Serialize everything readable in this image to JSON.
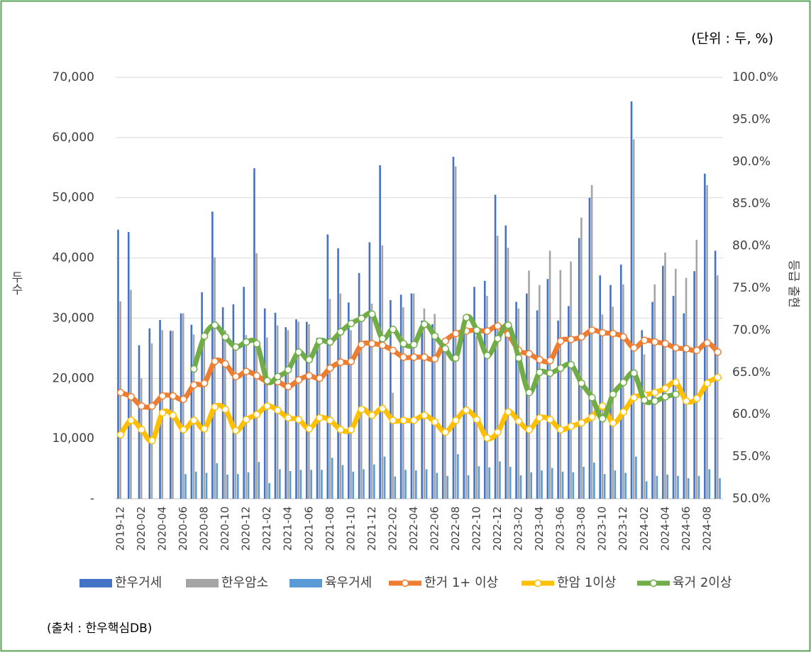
{
  "chart_data": {
    "type": "bar_line",
    "unit_note": "(단위 : 두, %)",
    "source": "(출처 : 한우핵심DB)",
    "ylabel": "두수",
    "y2label": "등급 출현",
    "categories": [
      "2019-12",
      null,
      "2020-02",
      null,
      "2020-04",
      null,
      "2020-06",
      null,
      "2020-08",
      null,
      "2020-10",
      null,
      "2020-12",
      null,
      "2021-02",
      null,
      "2021-04",
      null,
      "2021-06",
      null,
      "2021-08",
      null,
      "2021-10",
      null,
      "2021-12",
      null,
      "2022-02",
      null,
      "2022-04",
      null,
      "2022-06",
      null,
      "2022-08",
      null,
      "2022-10",
      null,
      "2022-12",
      null,
      "2023-02",
      null,
      "2023-04",
      null,
      "2023-06",
      null,
      "2023-08",
      null,
      "2023-10",
      null,
      "2023-12",
      null,
      "2024-02",
      null,
      "2024-04",
      null,
      "2024-06",
      null,
      "2024-08",
      null
    ],
    "ylim": [
      0,
      70000
    ],
    "yticks": [
      {
        "value": 0,
        "label": "-"
      },
      {
        "value": 10000,
        "label": "10,000"
      },
      {
        "value": 20000,
        "label": "20,000"
      },
      {
        "value": 30000,
        "label": "30,000"
      },
      {
        "value": 40000,
        "label": "40,000"
      },
      {
        "value": 50000,
        "label": "50,000"
      },
      {
        "value": 60000,
        "label": "60,000"
      },
      {
        "value": 70000,
        "label": "70,000"
      }
    ],
    "y2lim": [
      50,
      100
    ],
    "y2ticks": [
      {
        "value": 50,
        "label": "50.0%"
      },
      {
        "value": 55,
        "label": "55.0%"
      },
      {
        "value": 60,
        "label": "60.0%"
      },
      {
        "value": 65,
        "label": "65.0%"
      },
      {
        "value": 70,
        "label": "70.0%"
      },
      {
        "value": 75,
        "label": "75.0%"
      },
      {
        "value": 80,
        "label": "80.0%"
      },
      {
        "value": 85,
        "label": "85.0%"
      },
      {
        "value": 90,
        "label": "90.0%"
      },
      {
        "value": 95,
        "label": "95.0%"
      },
      {
        "value": 100,
        "label": "100.0%"
      }
    ],
    "grid": true,
    "series": [
      {
        "name": "한우거세",
        "type": "bar",
        "color": "#4472c4",
        "values": [
          44700,
          44300,
          25500,
          28300,
          29700,
          27900,
          30800,
          28900,
          34300,
          47700,
          31800,
          32300,
          35200,
          54900,
          31600,
          30900,
          28500,
          29800,
          29400,
          26700,
          43900,
          41600,
          32600,
          37500,
          42600,
          55400,
          33000,
          33900,
          34100,
          29600,
          29000,
          26000,
          56800,
          28900,
          35200,
          36200,
          50500,
          45400,
          32700,
          34100,
          31300,
          36500,
          29600,
          32000,
          43300,
          50000,
          37100,
          35500,
          38900,
          66000,
          28000,
          32700,
          38700,
          33700,
          30800,
          37800,
          54000,
          41200
        ]
      },
      {
        "name": "한우암소",
        "type": "bar",
        "color": "#a5a5a5",
        "values": [
          32800,
          34700,
          20000,
          25800,
          28000,
          27900,
          30800,
          27300,
          26000,
          40100,
          28000,
          25000,
          27200,
          40800,
          26800,
          28800,
          28000,
          29400,
          29000,
          26500,
          33200,
          34100,
          28000,
          29800,
          32400,
          42100,
          17600,
          31800,
          34100,
          31600,
          30700,
          25000,
          55200,
          27800,
          27000,
          33700,
          43700,
          41700,
          31600,
          37900,
          35500,
          41200,
          38000,
          39400,
          46700,
          52100,
          30600,
          31900,
          35600,
          59700,
          24000,
          35600,
          40900,
          38200,
          36700,
          43000,
          52100,
          37100
        ]
      },
      {
        "name": "육우거세",
        "type": "bar",
        "color": "#5b9bd5",
        "values": [
          null,
          null,
          null,
          null,
          null,
          null,
          4100,
          4500,
          4300,
          5900,
          4000,
          4100,
          4400,
          6100,
          2600,
          4900,
          4600,
          4800,
          4800,
          4800,
          6800,
          5600,
          4500,
          4900,
          5700,
          7000,
          3700,
          4800,
          4700,
          4900,
          4300,
          3800,
          7400,
          3900,
          5400,
          5200,
          6200,
          5300,
          3900,
          4400,
          4700,
          5100,
          4500,
          4400,
          5300,
          6000,
          4100,
          4700,
          4300,
          7000,
          2900,
          3800,
          4000,
          3800,
          3400,
          3800,
          4900,
          3400
        ]
      },
      {
        "name": "한거 1+ 이상",
        "type": "line",
        "axis": "y2",
        "color": "#ed7d31",
        "values": [
          62.6,
          62.1,
          61.0,
          61.0,
          62.2,
          62.2,
          61.8,
          63.5,
          63.7,
          66.3,
          66.0,
          64.5,
          65.1,
          64.6,
          63.9,
          63.9,
          63.3,
          64.1,
          64.6,
          64.3,
          65.5,
          66.2,
          66.3,
          68.3,
          68.4,
          68.2,
          67.6,
          66.8,
          66.8,
          66.8,
          66.6,
          68.7,
          69.6,
          69.9,
          70.0,
          69.9,
          70.5,
          69.5,
          67.6,
          67.2,
          66.5,
          66.4,
          68.7,
          68.9,
          69.2,
          70.0,
          69.7,
          69.6,
          69.2,
          67.9,
          68.8,
          68.6,
          68.4,
          67.9,
          67.8,
          67.6,
          68.5,
          67.4
        ]
      },
      {
        "name": "한암 1이상",
        "type": "line",
        "axis": "y2",
        "color": "#ffc000",
        "values": [
          57.6,
          59.3,
          58.2,
          56.9,
          60.2,
          59.9,
          58.2,
          59.3,
          58.3,
          60.9,
          60.6,
          58.1,
          59.4,
          60.0,
          61.0,
          60.5,
          59.6,
          59.4,
          58.3,
          59.6,
          59.3,
          58.2,
          58.2,
          60.6,
          59.9,
          60.7,
          59.3,
          59.3,
          59.3,
          59.9,
          59.1,
          57.9,
          59.3,
          60.5,
          59.4,
          57.2,
          57.9,
          60.3,
          59.2,
          58.2,
          59.6,
          59.4,
          58.2,
          58.6,
          59.0,
          59.7,
          61.0,
          59.0,
          60.3,
          62.0,
          62.3,
          62.6,
          63.1,
          63.8,
          61.6,
          61.9,
          63.7,
          64.4
        ]
      },
      {
        "name": "육거 2이상",
        "type": "line",
        "axis": "y2",
        "color": "#70ad47",
        "values": [
          null,
          null,
          null,
          null,
          null,
          null,
          null,
          65.4,
          69.3,
          70.6,
          69.2,
          68.0,
          68.6,
          68.4,
          64.0,
          64.5,
          65.3,
          67.4,
          66.5,
          68.7,
          68.6,
          69.8,
          70.8,
          71.4,
          71.9,
          69.0,
          70.1,
          68.4,
          68.3,
          70.7,
          69.3,
          67.8,
          66.7,
          71.5,
          70.0,
          67.0,
          69.0,
          70.6,
          66.7,
          62.6,
          65.0,
          64.9,
          65.5,
          65.9,
          63.7,
          62.0,
          59.5,
          62.4,
          63.8,
          64.9,
          61.7,
          61.6,
          62.1,
          62.4,
          null,
          null,
          null,
          null
        ]
      }
    ]
  }
}
